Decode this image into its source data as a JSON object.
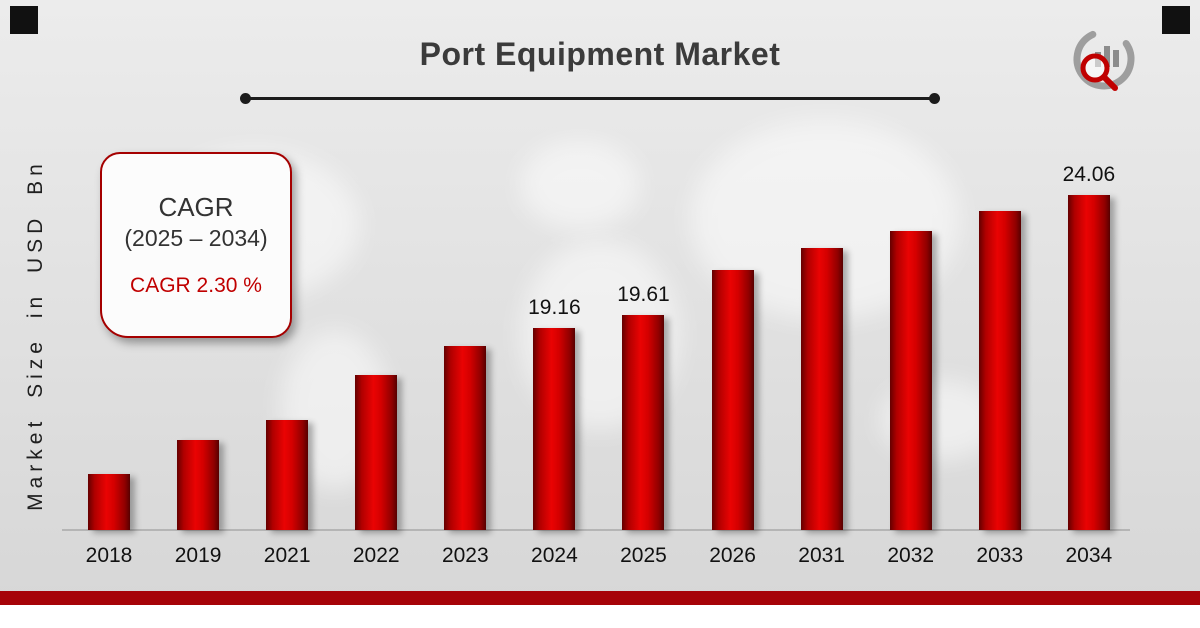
{
  "header": {
    "title": "Port Equipment Market"
  },
  "y_axis": {
    "label": "Market Size in USD Bn"
  },
  "cagr_box": {
    "title": "CAGR",
    "range": "(2025 – 2034)",
    "value": "CAGR 2.30 %"
  },
  "chart_data": {
    "type": "bar",
    "title": "Port Equipment Market",
    "xlabel": "",
    "ylabel": "Market Size in USD Bn",
    "categories": [
      "2018",
      "2019",
      "2021",
      "2022",
      "2023",
      "2024",
      "2025",
      "2026",
      "2031",
      "2032",
      "2033",
      "2034"
    ],
    "values": [
      14.0,
      15.2,
      15.9,
      17.5,
      18.5,
      19.16,
      19.61,
      21.2,
      22.0,
      22.6,
      23.3,
      24.06
    ],
    "data_labels": [
      "",
      "",
      "",
      "",
      "",
      "19.16",
      "19.61",
      "",
      "",
      "",
      "",
      "24.06"
    ],
    "ylim": [
      12,
      25
    ],
    "grid": false,
    "legend": false,
    "bar_color": "#cc0000"
  },
  "colors": {
    "bar_red": "#cc0000",
    "accent_red": "#a60308",
    "title_gray": "#3b3b3b",
    "line_black": "#1c1c1c"
  }
}
